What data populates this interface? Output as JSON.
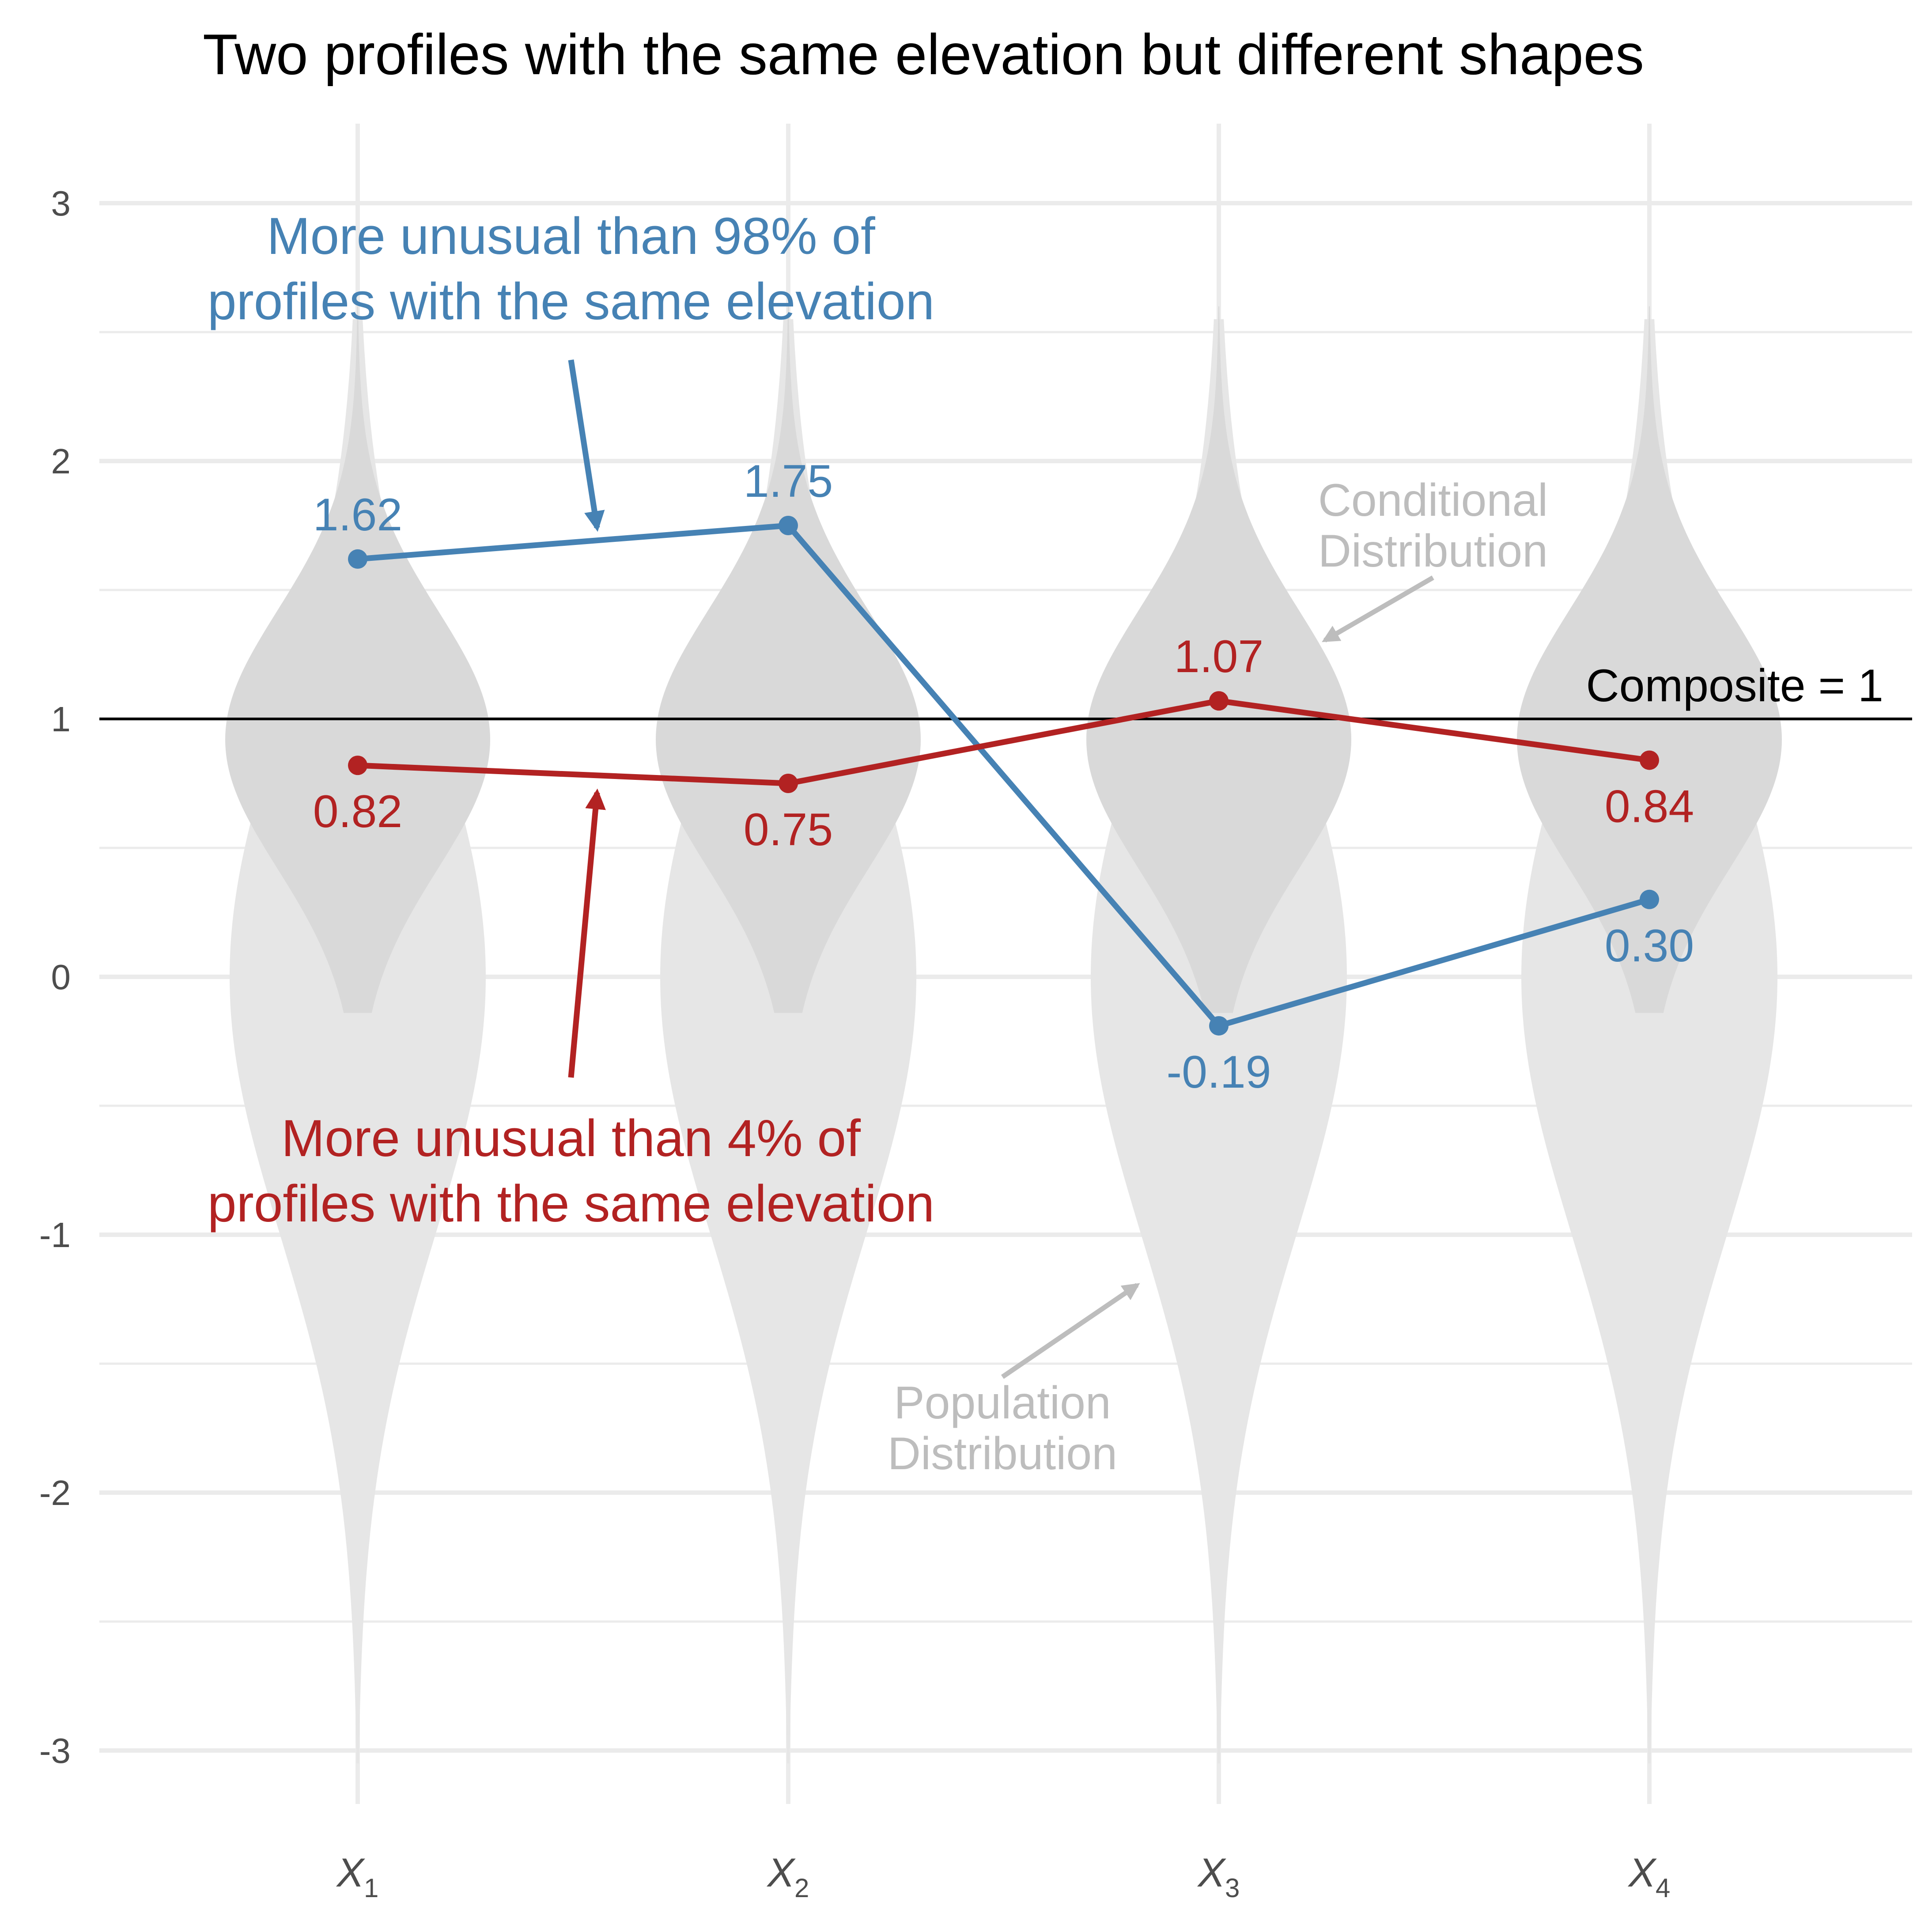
{
  "chart_data": {
    "type": "line",
    "title": "Two profiles with the same elevation but different shapes",
    "xlabel": "",
    "ylabel": "",
    "categories": [
      "X1",
      "X2",
      "X3",
      "X4"
    ],
    "x_tick_labels": [
      {
        "base": "X",
        "sub": "1"
      },
      {
        "base": "X",
        "sub": "2"
      },
      {
        "base": "X",
        "sub": "3"
      },
      {
        "base": "X",
        "sub": "4"
      }
    ],
    "y_ticks": [
      -3,
      -2,
      -1,
      0,
      1,
      2,
      3
    ],
    "y_tick_labels": [
      "-3",
      "-2",
      "-1",
      "0",
      "1",
      "2",
      "3"
    ],
    "ylim": [
      -3.25,
      3.3
    ],
    "grid": true,
    "series": [
      {
        "values": [
          1.62,
          1.75,
          -0.19,
          0.3
        ],
        "labels": [
          "1.62",
          "1.75",
          "-0.19",
          "0.30"
        ],
        "label_side": [
          "above",
          "above",
          "below",
          "below"
        ],
        "color": "#4682b4"
      },
      {
        "values": [
          0.82,
          0.75,
          1.07,
          0.84
        ],
        "labels": [
          "0.82",
          "0.75",
          "1.07",
          "0.84"
        ],
        "label_side": [
          "below",
          "below",
          "above",
          "below"
        ],
        "color": "#b22222"
      }
    ],
    "reference_line": {
      "y": 1,
      "label": "Composite = 1",
      "color": "#000000"
    },
    "distributions": {
      "population": {
        "mean": 0,
        "sd": 1,
        "color": "#e6e6e6"
      },
      "conditional": {
        "mean": 0.92,
        "sd": 0.5,
        "color": "#d9d9d9"
      }
    },
    "annotations": {
      "blue": {
        "lines": [
          "More unusual than 98% of",
          "profiles with the same elevation"
        ],
        "color": "#4682b4"
      },
      "red": {
        "lines": [
          "More unusual than 4% of",
          "profiles with the same elevation"
        ],
        "color": "#b22222"
      },
      "conditional": {
        "lines": [
          "Conditional",
          "Distribution"
        ],
        "color": "#bdbdbd"
      },
      "population": {
        "lines": [
          "Population",
          "Distribution"
        ],
        "color": "#bdbdbd"
      }
    }
  }
}
